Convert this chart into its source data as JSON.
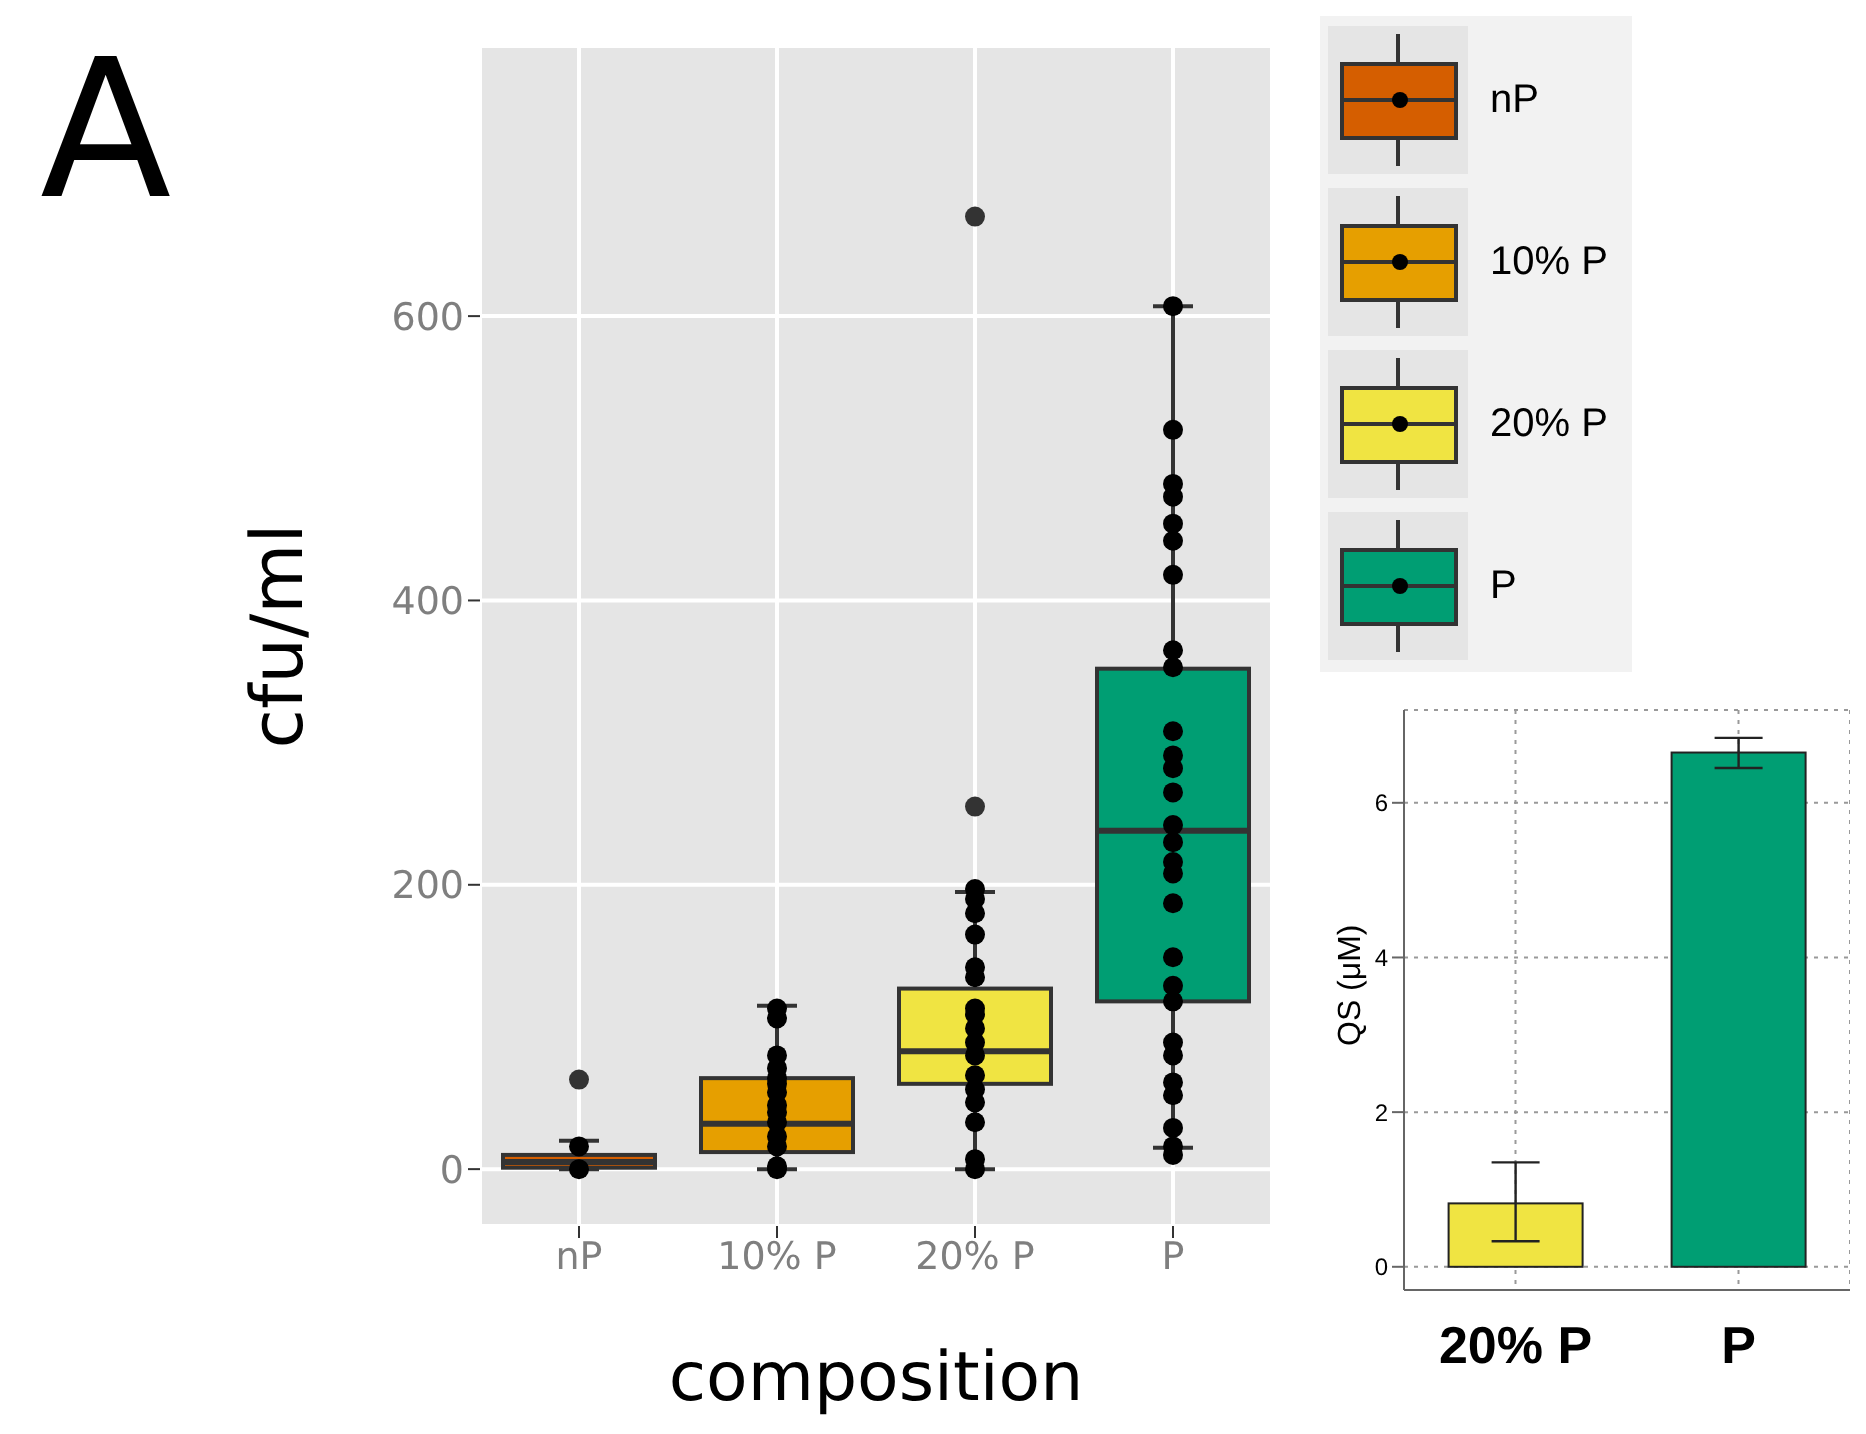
{
  "chart_data": [
    {
      "type": "box",
      "title": "A",
      "xlabel": "composition",
      "ylabel": "cfu/ml",
      "categories": [
        "nP",
        "10% P",
        "20% P",
        "P"
      ],
      "colors": [
        "#d55e00",
        "#e69f00",
        "#f0e442",
        "#009e73"
      ],
      "boxes": [
        {
          "low": 0,
          "q1": 1,
          "median": 5,
          "q3": 10,
          "high": 20,
          "outliers": [
            63
          ]
        },
        {
          "low": 0,
          "q1": 12,
          "median": 32,
          "q3": 64,
          "high": 115
        },
        {
          "low": 0,
          "q1": 60,
          "median": 83,
          "q3": 127,
          "high": 195,
          "outliers": [
            255,
            670
          ]
        },
        {
          "low": 15,
          "q1": 118,
          "median": 238,
          "q3": 352,
          "high": 607
        }
      ],
      "series": [
        {
          "type": "scatter",
          "color": "#000000",
          "x": [
            "nP",
            "nP",
            "10% P",
            "10% P",
            "10% P",
            "10% P",
            "10% P",
            "10% P",
            "10% P",
            "10% P",
            "10% P",
            "10% P",
            "10% P",
            "10% P",
            "10% P",
            "10% P",
            "20% P",
            "20% P",
            "20% P",
            "20% P",
            "20% P",
            "20% P",
            "20% P",
            "20% P",
            "20% P",
            "20% P",
            "20% P",
            "20% P",
            "20% P",
            "20% P",
            "20% P",
            "20% P",
            "20% P",
            "P",
            "P",
            "P",
            "P",
            "P",
            "P",
            "P",
            "P",
            "P",
            "P",
            "P",
            "P",
            "P",
            "P",
            "P",
            "P",
            "P",
            "P",
            "P",
            "P",
            "P",
            "P",
            "P",
            "P",
            "P",
            "P",
            "P",
            "P"
          ],
          "values": [
            0,
            16,
            106,
            113,
            71,
            80,
            64,
            54,
            45,
            33,
            23,
            16,
            2,
            0,
            40,
            60,
            197,
            190,
            180,
            165,
            142,
            135,
            113,
            109,
            99,
            89,
            80,
            66,
            56,
            47,
            33,
            7,
            0,
            607,
            520,
            482,
            473,
            454,
            442,
            418,
            365,
            353,
            308,
            291,
            282,
            265,
            242,
            230,
            216,
            208,
            187,
            149,
            129,
            118,
            89,
            80,
            61,
            52,
            29,
            16,
            10
          ]
        }
      ],
      "ylim": [
        -40,
        790
      ],
      "yticks": [
        0,
        200,
        400,
        600
      ],
      "grid": true
    },
    {
      "type": "bar",
      "ylabel": "QS (μM)",
      "categories": [
        "20% P",
        "P"
      ],
      "values": [
        0.82,
        6.65
      ],
      "colors": [
        "#f0e442",
        "#009e73"
      ],
      "errors": [
        [
          0.33,
          1.35
        ],
        [
          6.45,
          6.84
        ]
      ],
      "ylim": [
        -0.3,
        7.2
      ],
      "yticks": [
        0,
        2,
        4,
        6
      ],
      "grid": true
    }
  ]
}
